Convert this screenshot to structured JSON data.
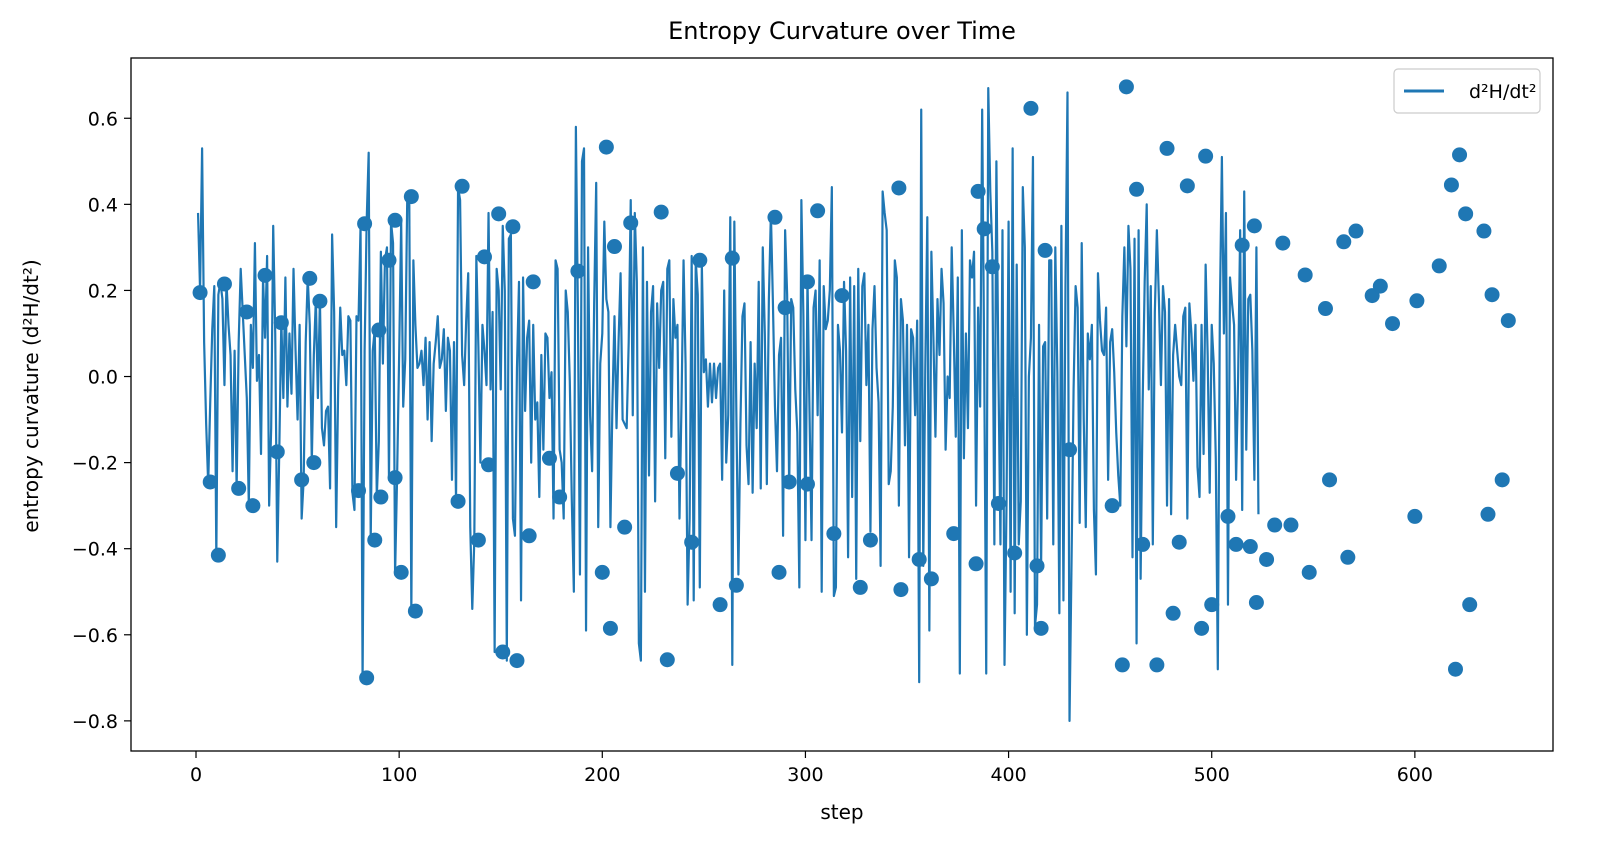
{
  "chart_data": {
    "type": "line",
    "title": "Entropy Curvature over Time",
    "xlabel": "step",
    "ylabel": "entropy curvature (d²H/dt²)",
    "xlim": [
      -32,
      668
    ],
    "ylim": [
      -0.87,
      0.74
    ],
    "xticks": [
      0,
      100,
      200,
      300,
      400,
      500,
      600
    ],
    "yticks": [
      -0.8,
      -0.6,
      -0.4,
      -0.2,
      0.0,
      0.2,
      0.4,
      0.6
    ],
    "xtick_labels": [
      "0",
      "100",
      "200",
      "300",
      "400",
      "500",
      "600"
    ],
    "ytick_labels": [
      "−0.8",
      "−0.6",
      "−0.4",
      "−0.2",
      "0.0",
      "0.2",
      "0.4",
      "0.6"
    ],
    "grid": false,
    "legend_position": "top-right",
    "color": "#1f77b4",
    "series": [
      {
        "name": "d²H/dt²",
        "x_start": 1,
        "x_step": 1,
        "values": [
          0.38,
          0.2,
          0.53,
          0.08,
          -0.11,
          -0.25,
          -0.06,
          0.11,
          0.21,
          -0.42,
          0.19,
          0.22,
          0.18,
          -0.02,
          0.22,
          0.12,
          0.05,
          -0.22,
          0.06,
          -0.26,
          0.08,
          0.25,
          0.15,
          0.05,
          -0.05,
          -0.3,
          0.12,
          0.02,
          0.31,
          -0.01,
          0.05,
          -0.18,
          0.23,
          0.09,
          0.28,
          -0.3,
          -0.12,
          0.35,
          0.1,
          -0.43,
          -0.17,
          0.13,
          -0.05,
          0.23,
          -0.07,
          0.1,
          -0.04,
          0.25,
          0.06,
          -0.1,
          0.12,
          -0.33,
          -0.24,
          0.08,
          0.23,
          0.12,
          -0.2,
          0.05,
          0.18,
          -0.05,
          0.18,
          -0.12,
          -0.16,
          -0.08,
          -0.07,
          -0.26,
          0.33,
          0.15,
          -0.35,
          -0.02,
          0.16,
          0.05,
          0.06,
          -0.02,
          0.14,
          0.13,
          -0.27,
          -0.31,
          0.14,
          0.13,
          0.35,
          -0.71,
          0.06,
          0.36,
          0.52,
          -0.38,
          0.06,
          0.11,
          -0.28,
          -0.15,
          0.29,
          0.03,
          0.27,
          0.3,
          -0.24,
          0.36,
          0.31,
          -0.46,
          -0.23,
          0.05,
          0.36,
          -0.07,
          0.04,
          0.42,
          0.4,
          -0.55,
          0.27,
          0.12,
          0.02,
          0.03,
          0.06,
          -0.02,
          0.09,
          -0.1,
          0.08,
          -0.15,
          0.03,
          0.08,
          0.14,
          0.02,
          0.04,
          0.11,
          -0.08,
          0.09,
          0.06,
          -0.24,
          0.08,
          -0.29,
          0.44,
          0.41,
          0.05,
          -0.02,
          0.13,
          0.24,
          -0.35,
          -0.54,
          -0.38,
          0.28,
          0.07,
          -0.2,
          0.12,
          0.06,
          -0.02,
          0.38,
          -0.03,
          0.15,
          -0.64,
          0.25,
          0.2,
          -0.03,
          0.35,
          0.2,
          -0.66,
          0.32,
          0.33,
          -0.33,
          -0.37,
          0.02,
          0.22,
          -0.52,
          0.23,
          -0.08,
          0.09,
          0.13,
          -0.2,
          0.12,
          -0.1,
          -0.06,
          -0.28,
          0.05,
          -0.17,
          0.1,
          0.09,
          -0.05,
          0.01,
          -0.33,
          0.27,
          0.25,
          -0.17,
          -0.2,
          -0.33,
          0.2,
          0.15,
          -0.01,
          -0.29,
          -0.5,
          0.58,
          0.15,
          -0.46,
          0.5,
          0.53,
          -0.59,
          0.3,
          -0.09,
          -0.22,
          0.17,
          0.45,
          -0.35,
          0.03,
          0.1,
          0.36,
          0.18,
          0.15,
          -0.35,
          -0.06,
          0.14,
          -0.12,
          0.08,
          0.24,
          -0.1,
          -0.11,
          -0.12,
          0.08,
          0.41,
          -0.09,
          0.38,
          0.22,
          -0.62,
          -0.66,
          0.3,
          -0.5,
          0.22,
          -0.23,
          0.15,
          0.21,
          -0.29,
          0.17,
          0.02,
          0.2,
          0.22,
          -0.19,
          0.25,
          0.27,
          -0.14,
          0.18,
          0.09,
          0.12,
          -0.33,
          -0.06,
          0.27,
          0.03,
          -0.53,
          -0.33,
          0.28,
          -0.52,
          0.27,
          0.19,
          -0.49,
          0.26,
          0.01,
          0.04,
          -0.07,
          0.03,
          -0.06,
          0.03,
          -0.05,
          0.02,
          0.03,
          -0.24,
          0.2,
          -0.2,
          -0.09,
          0.37,
          -0.67,
          0.36,
          -0.09,
          -0.46,
          -0.11,
          0.14,
          0.17,
          -0.16,
          -0.25,
          0.08,
          -0.27,
          0.03,
          -0.12,
          0.22,
          -0.26,
          0.3,
          0.1,
          -0.25,
          0.18,
          0.38,
          0.17,
          -0.07,
          -0.22,
          0.05,
          0.09,
          -0.37,
          0.34,
          0.19,
          -0.26,
          0.18,
          0.16,
          -0.03,
          -0.13,
          -0.49,
          0.41,
          0.14,
          -0.38,
          0.23,
          -0.08,
          -0.38,
          0.16,
          0.2,
          -0.09,
          0.27,
          -0.5,
          0.21,
          0.11,
          0.13,
          0.2,
          0.44,
          -0.51,
          -0.49,
          0.12,
          0.06,
          -0.13,
          0.22,
          0.06,
          -0.42,
          0.23,
          -0.28,
          0.21,
          -0.47,
          0.25,
          -0.15,
          0.21,
          0.24,
          -0.02,
          0.12,
          -0.36,
          0.11,
          0.21,
          0.02,
          -0.06,
          -0.44,
          0.43,
          0.38,
          0.34,
          -0.25,
          -0.22,
          -0.07,
          0.27,
          0.23,
          -0.3,
          0.18,
          0.13,
          -0.16,
          0.12,
          -0.42,
          0.11,
          0.09,
          -0.09,
          0.13,
          -0.71,
          0.62,
          -0.44,
          0.02,
          0.37,
          -0.59,
          0.29,
          0.09,
          -0.14,
          0.18,
          0.05,
          0.25,
          0.17,
          -0.17,
          0.0,
          -0.05,
          0.3,
          0.1,
          -0.14,
          0.23,
          -0.69,
          0.34,
          -0.19,
          0.1,
          -0.12,
          0.27,
          0.23,
          0.29,
          -0.3,
          0.16,
          -0.07,
          0.62,
          0.03,
          -0.69,
          0.67,
          0.43,
          0.29,
          -0.39,
          0.5,
          0.01,
          -0.39,
          0.34,
          -0.67,
          -0.29,
          0.36,
          -0.5,
          0.53,
          -0.55,
          0.26,
          -0.39,
          -0.29,
          0.44,
          0.3,
          -0.6,
          0.0,
          0.09,
          0.51,
          -0.58,
          -0.53,
          0.12,
          -0.45,
          0.07,
          0.08,
          -0.33,
          0.27,
          0.27,
          -0.39,
          0.3,
          0.01,
          -0.55,
          0.35,
          -0.52,
          0.21,
          0.66,
          -0.8,
          -0.43,
          -0.03,
          0.21,
          0.16,
          -0.34,
          0.31,
          -0.1,
          -0.35,
          0.1,
          0.04,
          0.12,
          -0.31,
          -0.46,
          0.24,
          0.13,
          0.06,
          0.05,
          0.16,
          -0.24,
          0.08,
          0.11,
          0.01,
          -0.13,
          -0.23,
          -0.3,
          0.14,
          0.3,
          0.07,
          0.35,
          0.25,
          -0.42,
          0.32,
          -0.62,
          0.34,
          -0.47,
          -0.06,
          0.22,
          0.4,
          -0.03,
          0.21,
          -0.39,
          0.15,
          0.34,
          0.18,
          -0.02,
          0.21,
          0.15,
          -0.3,
          0.18,
          -0.32,
          0.05,
          0.12,
          0.06,
          0.0,
          -0.02,
          0.14,
          0.16,
          -0.33,
          0.17,
          0.1,
          -0.01,
          0.12,
          -0.21,
          -0.28,
          0.12,
          -0.18,
          0.26,
          0.05,
          -0.27,
          0.12,
          0.03,
          -0.19,
          -0.68,
          0.15,
          0.51,
          0.1,
          0.38,
          -0.53,
          0.23,
          0.17,
          0.12,
          -0.24,
          0.0,
          0.34,
          -0.31,
          0.43,
          -0.17,
          0.18,
          0.19,
          0.06,
          -0.24,
          0.3,
          -0.32
        ],
        "markers": [
          [
            2,
            0.195
          ],
          [
            7,
            -0.245
          ],
          [
            11,
            -0.415
          ],
          [
            14,
            0.215
          ],
          [
            21,
            -0.26
          ],
          [
            25,
            0.15
          ],
          [
            28,
            -0.3
          ],
          [
            34,
            0.235
          ],
          [
            40,
            -0.175
          ],
          [
            42,
            0.125
          ],
          [
            52,
            -0.24
          ],
          [
            56,
            0.228
          ],
          [
            58,
            -0.2
          ],
          [
            61,
            0.175
          ],
          [
            80,
            -0.265
          ],
          [
            83,
            0.355
          ],
          [
            84,
            -0.7
          ],
          [
            88,
            -0.38
          ],
          [
            90,
            0.108
          ],
          [
            91,
            -0.28
          ],
          [
            95,
            0.27
          ],
          [
            98,
            -0.235
          ],
          [
            98,
            0.363
          ],
          [
            101,
            -0.455
          ],
          [
            106,
            0.418
          ],
          [
            108,
            -0.545
          ],
          [
            129,
            -0.29
          ],
          [
            131,
            0.442
          ],
          [
            139,
            -0.38
          ],
          [
            142,
            0.278
          ],
          [
            144,
            -0.205
          ],
          [
            149,
            0.378
          ],
          [
            151,
            -0.64
          ],
          [
            156,
            0.348
          ],
          [
            158,
            -0.66
          ],
          [
            164,
            -0.37
          ],
          [
            166,
            0.22
          ],
          [
            174,
            -0.19
          ],
          [
            179,
            -0.28
          ],
          [
            188,
            0.245
          ],
          [
            200,
            -0.455
          ],
          [
            202,
            0.533
          ],
          [
            204,
            -0.585
          ],
          [
            206,
            0.302
          ],
          [
            211,
            -0.35
          ],
          [
            214,
            0.357
          ],
          [
            229,
            0.382
          ],
          [
            232,
            -0.658
          ],
          [
            237,
            -0.225
          ],
          [
            244,
            -0.385
          ],
          [
            248,
            0.27
          ],
          [
            258,
            -0.53
          ],
          [
            264,
            0.275
          ],
          [
            266,
            -0.485
          ],
          [
            285,
            0.37
          ],
          [
            287,
            -0.455
          ],
          [
            290,
            0.16
          ],
          [
            292,
            -0.245
          ],
          [
            301,
            0.22
          ],
          [
            301,
            -0.25
          ],
          [
            306,
            0.385
          ],
          [
            314,
            -0.365
          ],
          [
            318,
            0.188
          ],
          [
            327,
            -0.49
          ],
          [
            332,
            -0.38
          ],
          [
            346,
            0.438
          ],
          [
            347,
            -0.495
          ],
          [
            356,
            -0.425
          ],
          [
            362,
            -0.47
          ],
          [
            373,
            -0.365
          ],
          [
            384,
            -0.435
          ],
          [
            385,
            0.43
          ],
          [
            388,
            0.343
          ],
          [
            392,
            0.255
          ],
          [
            395,
            -0.295
          ],
          [
            403,
            -0.41
          ],
          [
            411,
            0.623
          ],
          [
            414,
            -0.44
          ],
          [
            416,
            -0.585
          ],
          [
            418,
            0.293
          ],
          [
            430,
            -0.17
          ],
          [
            451,
            -0.3
          ],
          [
            456,
            -0.67
          ],
          [
            458,
            0.673
          ],
          [
            463,
            0.435
          ],
          [
            466,
            -0.39
          ],
          [
            473,
            -0.67
          ],
          [
            478,
            0.53
          ],
          [
            481,
            -0.55
          ],
          [
            484,
            -0.385
          ],
          [
            488,
            0.443
          ],
          [
            495,
            -0.585
          ],
          [
            497,
            0.512
          ],
          [
            500,
            -0.53
          ],
          [
            508,
            -0.325
          ],
          [
            512,
            -0.39
          ],
          [
            515,
            0.305
          ],
          [
            519,
            -0.395
          ],
          [
            521,
            0.35
          ],
          [
            522,
            -0.525
          ],
          [
            527,
            -0.425
          ],
          [
            531,
            -0.345
          ],
          [
            535,
            0.31
          ],
          [
            539,
            -0.345
          ],
          [
            546,
            0.236
          ],
          [
            548,
            -0.455
          ],
          [
            556,
            0.158
          ],
          [
            558,
            -0.24
          ],
          [
            565,
            0.313
          ],
          [
            567,
            -0.42
          ],
          [
            571,
            0.338
          ],
          [
            579,
            0.188
          ],
          [
            583,
            0.21
          ],
          [
            589,
            0.123
          ],
          [
            600,
            -0.325
          ],
          [
            601,
            0.176
          ],
          [
            612,
            0.257
          ],
          [
            618,
            0.445
          ],
          [
            620,
            -0.68
          ],
          [
            622,
            0.515
          ],
          [
            625,
            0.378
          ],
          [
            627,
            -0.53
          ],
          [
            634,
            0.338
          ],
          [
            636,
            -0.32
          ],
          [
            638,
            0.19
          ],
          [
            643,
            -0.24
          ],
          [
            646,
            0.13
          ]
        ]
      }
    ]
  }
}
